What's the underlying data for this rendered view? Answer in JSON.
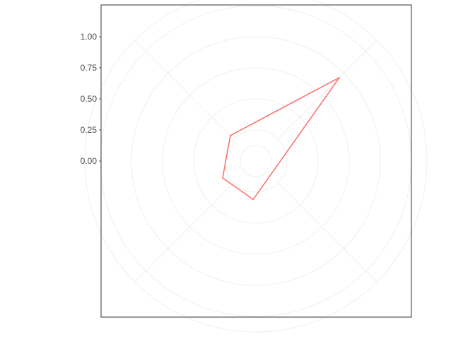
{
  "chart_data": {
    "type": "radar",
    "title": "",
    "xlabel": "",
    "ylabel": "",
    "ylim": [
      -0.25,
      1.25
    ],
    "radial_ticks": [
      "0.00",
      "0.25",
      "0.50",
      "0.75",
      "1.00"
    ],
    "radial_tick_values": [
      0,
      0.25,
      0.5,
      0.75,
      1.0
    ],
    "spokes": 4,
    "grid": true,
    "series": [
      {
        "values": [
          0.7,
          0.04,
          0.05,
          0.06
        ],
        "angles_deg": [
          45,
          135,
          207,
          266
        ],
        "color": "#F8766D"
      }
    ]
  },
  "colors": {
    "grid": "#ebebeb",
    "panel_border": "#333333",
    "tick_text": "#4d4d4d",
    "series": "#F8766D"
  }
}
